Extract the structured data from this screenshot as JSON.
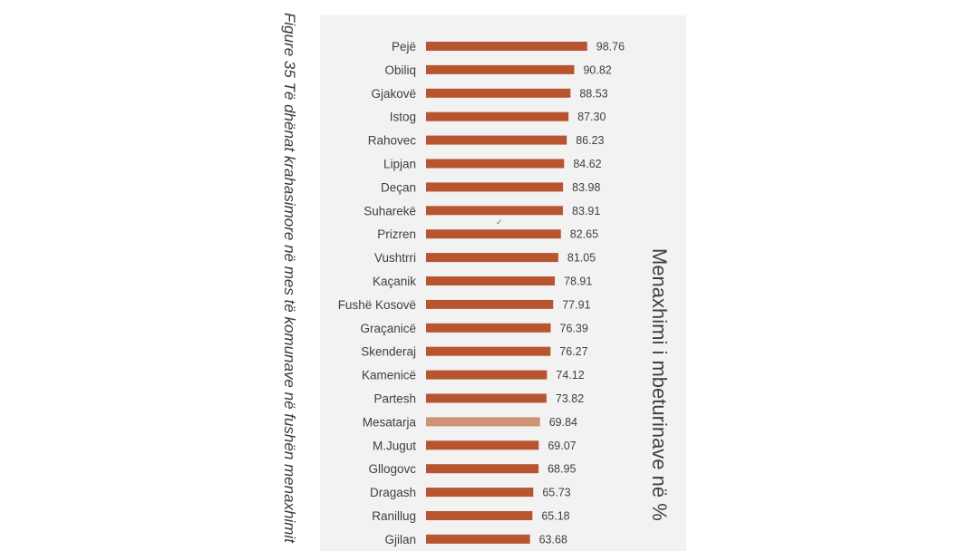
{
  "caption": "Figure 35 Të dhënat krahasimore në mes të komunave në fushën menaxhimit",
  "chart_data": {
    "type": "bar",
    "orientation": "horizontal",
    "title": "",
    "ylabel": "Menaxhimi i mbeturinave në %",
    "categories": [
      "Pejë",
      "Obiliq",
      "Gjakovë",
      "Istog",
      "Rahovec",
      "Lipjan",
      "Deçan",
      "Suharekë",
      "Prizren",
      "Vushtrri",
      "Kaçanik",
      "Fushë Kosovë",
      "Graçanicë",
      "Skenderaj",
      "Kamenicë",
      "Partesh",
      "Mesatarja",
      "M.Jugut",
      "Gllogovc",
      "Dragash",
      "Ranillug",
      "Gjilan"
    ],
    "values": [
      98.76,
      90.82,
      88.53,
      87.3,
      86.23,
      84.62,
      83.98,
      83.91,
      82.65,
      81.05,
      78.91,
      77.91,
      76.39,
      76.27,
      74.12,
      73.82,
      69.84,
      69.07,
      68.95,
      65.73,
      65.18,
      63.68
    ],
    "value_labels": [
      "98.76",
      "90.82",
      "88.53",
      "87.30",
      "86.23",
      "84.62",
      "83.98",
      "83.91",
      "82.65",
      "81.05",
      "78.91",
      "77.91",
      "76.39",
      "76.27",
      "74.12",
      "73.82",
      "69.84",
      "69.07",
      "68.95",
      "65.73",
      "65.18",
      "63.68"
    ],
    "highlight_category": "Mesatarja",
    "colors": {
      "bar": "#b85430",
      "highlight": "#cc9374",
      "panel": "#f2f2f2"
    },
    "xlim": [
      0,
      100
    ],
    "grid": false,
    "legend": "none",
    "annotation_mark": "✓"
  }
}
